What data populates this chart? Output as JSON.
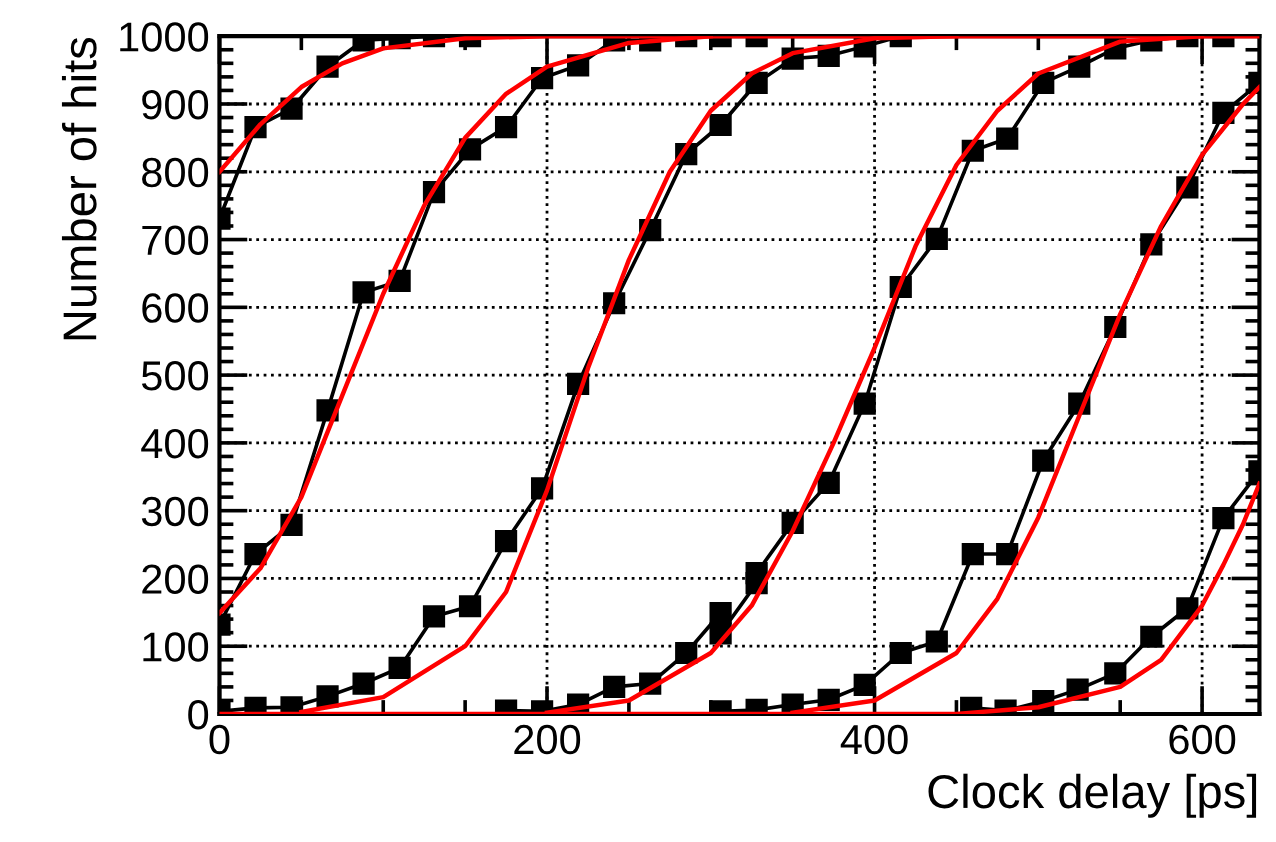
{
  "chart_data": {
    "type": "line",
    "xlabel": "Clock delay [ps]",
    "ylabel": "Number of hits",
    "xlim": [
      0,
      635
    ],
    "ylim": [
      0,
      1000
    ],
    "xticks": [
      0,
      200,
      400,
      600
    ],
    "yticks": [
      0,
      100,
      200,
      300,
      400,
      500,
      600,
      700,
      800,
      900,
      1000
    ],
    "grid": true,
    "legend": false,
    "line_style": "solid",
    "series": [
      {
        "color": "#000000",
        "marker": "square",
        "x": [
          0,
          22,
          44,
          66,
          88,
          110,
          131,
          153
        ],
        "values": [
          731,
          866,
          893,
          955,
          994,
          997,
          1000,
          1000
        ]
      },
      {
        "color": "#000000",
        "marker": "square",
        "x": [
          0,
          22,
          44,
          66,
          88,
          110,
          131,
          153,
          175,
          197,
          219,
          241,
          263,
          285,
          306,
          328
        ],
        "values": [
          132,
          236,
          279,
          448,
          622,
          639,
          770,
          833,
          866,
          938,
          957,
          994,
          994,
          1000,
          1000,
          1000
        ]
      },
      {
        "color": "#000000",
        "marker": "square",
        "x": [
          0,
          22,
          44,
          66,
          88,
          110,
          131,
          153,
          175,
          197,
          219,
          241,
          263,
          285,
          306,
          328,
          350,
          372,
          394,
          416
        ],
        "values": [
          4,
          9,
          10,
          26,
          45,
          68,
          144,
          159,
          255,
          333,
          487,
          606,
          714,
          826,
          869,
          931,
          967,
          971,
          985,
          1000
        ]
      },
      {
        "color": "#000000",
        "marker": "square",
        "x": [
          175,
          197,
          219,
          241,
          263,
          285,
          306,
          306,
          328,
          328,
          350,
          372,
          394,
          416,
          438,
          460,
          481,
          503,
          525,
          547,
          569,
          591,
          613
        ],
        "values": [
          5,
          4,
          14,
          40,
          45,
          90,
          149,
          119,
          193,
          208,
          282,
          341,
          458,
          630,
          701,
          831,
          849,
          931,
          955,
          982,
          994,
          1000,
          1000
        ]
      },
      {
        "color": "#000000",
        "marker": "square",
        "x": [
          306,
          328,
          350,
          372,
          394,
          416,
          438,
          460,
          481,
          503,
          525,
          547,
          569,
          591,
          613,
          635
        ],
        "values": [
          4,
          6,
          14,
          21,
          43,
          90,
          107,
          236,
          236,
          374,
          458,
          571,
          693,
          777,
          887,
          931
        ]
      },
      {
        "color": "#000000",
        "marker": "square",
        "x": [
          459,
          480,
          503,
          524,
          547,
          569,
          591,
          613,
          635
        ],
        "values": [
          9,
          5,
          19,
          36,
          60,
          114,
          156,
          289,
          358
        ]
      },
      {
        "color": "#ff0000",
        "marker": "none",
        "x": [
          0,
          25,
          50,
          75,
          100,
          150,
          200,
          635
        ],
        "values": [
          800,
          870,
          925,
          960,
          982,
          997,
          1000,
          1000
        ]
      },
      {
        "color": "#ff0000",
        "marker": "none",
        "x": [
          0,
          25,
          50,
          75,
          100,
          125,
          150,
          175,
          200,
          250,
          300
        ],
        "values": [
          149,
          215,
          320,
          470,
          620,
          750,
          850,
          915,
          955,
          990,
          1000
        ]
      },
      {
        "color": "#ff0000",
        "marker": "none",
        "x": [
          50,
          100,
          150,
          175,
          200,
          225,
          250,
          275,
          300,
          325,
          350,
          400,
          450
        ],
        "values": [
          3,
          25,
          100,
          180,
          330,
          510,
          670,
          800,
          890,
          945,
          975,
          997,
          1000
        ]
      },
      {
        "color": "#ff0000",
        "marker": "none",
        "x": [
          200,
          250,
          300,
          325,
          350,
          375,
          400,
          425,
          450,
          475,
          500,
          550,
          600
        ],
        "values": [
          2,
          20,
          90,
          160,
          270,
          400,
          540,
          690,
          810,
          890,
          945,
          992,
          1000
        ]
      },
      {
        "color": "#ff0000",
        "marker": "none",
        "x": [
          350,
          400,
          450,
          475,
          500,
          525,
          550,
          575,
          600,
          625,
          635
        ],
        "values": [
          2,
          20,
          90,
          170,
          290,
          440,
          590,
          720,
          825,
          900,
          925
        ]
      },
      {
        "color": "#ff0000",
        "marker": "none",
        "x": [
          0,
          450,
          500,
          550,
          575,
          600,
          613,
          625,
          635
        ],
        "values": [
          0,
          0,
          10,
          40,
          80,
          160,
          220,
          280,
          340
        ]
      }
    ]
  }
}
